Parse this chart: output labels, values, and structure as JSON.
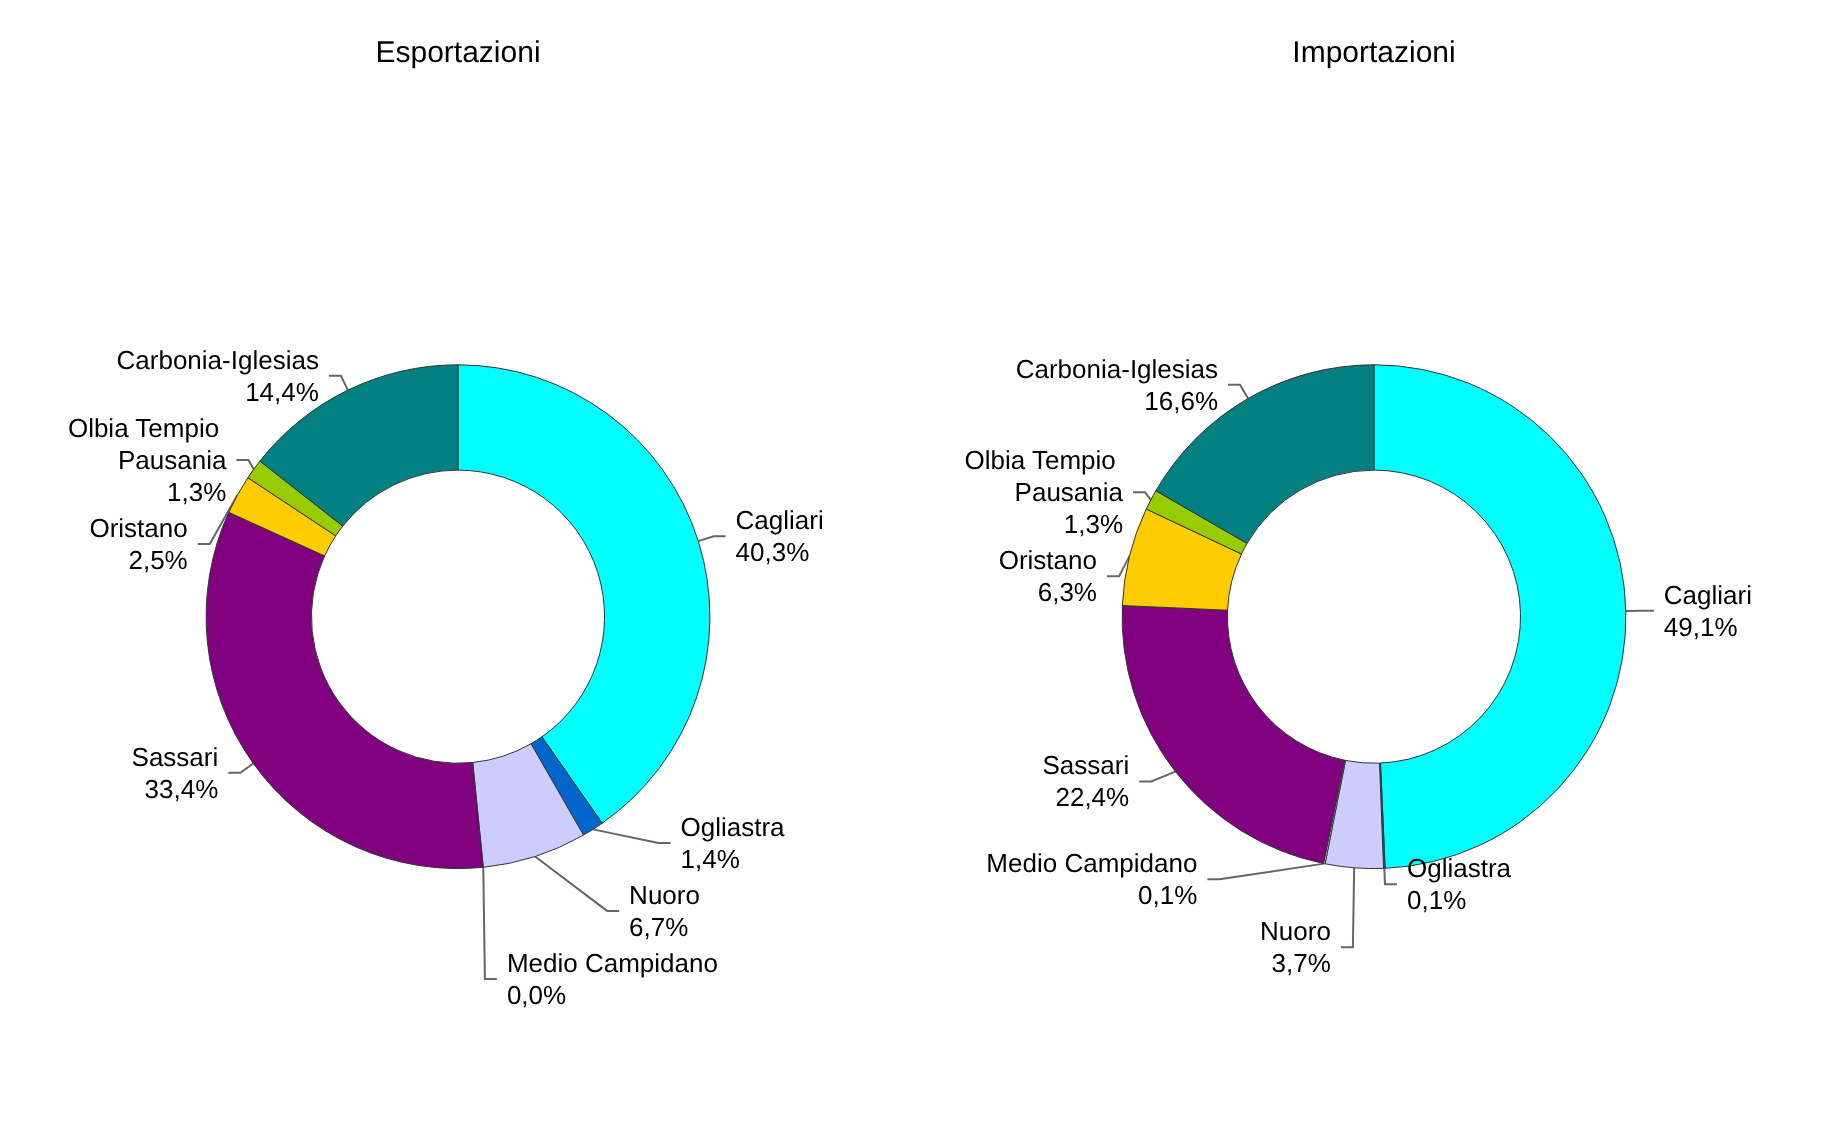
{
  "chart_data": [
    {
      "type": "donut",
      "title": "Esportazioni",
      "categories": [
        "Cagliari",
        "Ogliastra",
        "Nuoro",
        "Medio Campidano",
        "Sassari",
        "Oristano",
        "Olbia Tempio Pausania",
        "Carbonia-Iglesias"
      ],
      "values": [
        40.3,
        1.4,
        6.7,
        0.0,
        33.4,
        2.5,
        1.3,
        14.4
      ],
      "value_labels": [
        "40,3%",
        "1,4%",
        "6,7%",
        "0,0%",
        "33,4%",
        "2,5%",
        "1,3%",
        "14,4%"
      ],
      "colors": [
        "#00ffff",
        "#0066cc",
        "#ccccff",
        "#ffffcc",
        "#800080",
        "#ffcc00",
        "#99cc00",
        "#008080"
      ]
    },
    {
      "type": "donut",
      "title": "Importazioni",
      "categories": [
        "Cagliari",
        "Ogliastra",
        "Nuoro",
        "Medio Campidano",
        "Sassari",
        "Oristano",
        "Olbia Tempio Pausania",
        "Carbonia-Iglesias"
      ],
      "values": [
        49.1,
        0.1,
        3.7,
        0.1,
        22.4,
        6.3,
        1.3,
        16.6
      ],
      "value_labels": [
        "49,1%",
        "0,1%",
        "3,7%",
        "0,1%",
        "22,4%",
        "6,3%",
        "1,3%",
        "16,6%"
      ],
      "colors": [
        "#00ffff",
        "#0066cc",
        "#ccccff",
        "#ffffcc",
        "#800080",
        "#ffcc00",
        "#99cc00",
        "#008080"
      ]
    }
  ]
}
